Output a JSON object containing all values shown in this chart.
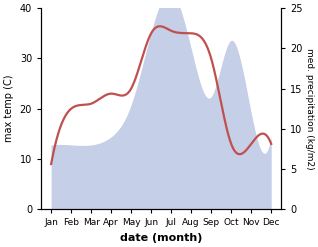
{
  "months": [
    "Jan",
    "Feb",
    "Mar",
    "Apr",
    "May",
    "Jun",
    "Jul",
    "Aug",
    "Sep",
    "Oct",
    "Nov",
    "Dec"
  ],
  "month_positions": [
    0,
    1,
    2,
    3,
    4,
    5,
    6,
    7,
    8,
    9,
    10,
    11
  ],
  "max_temp": [
    9,
    20,
    21,
    23,
    24,
    35,
    35.5,
    35,
    30,
    13,
    13,
    13
  ],
  "precipitation": [
    8,
    8,
    8,
    9,
    13,
    22,
    27,
    20,
    14,
    21,
    12,
    9
  ],
  "temp_color": "#c0504d",
  "precip_fill_color": "#c5cfe8",
  "precip_fill_alpha": 1.0,
  "temp_ylim": [
    0,
    40
  ],
  "precip_ylim": [
    0,
    25
  ],
  "precip_yticks": [
    0,
    5,
    10,
    15,
    20,
    25
  ],
  "temp_yticks": [
    0,
    10,
    20,
    30,
    40
  ],
  "ylabel_left": "max temp (C)",
  "ylabel_right": "med. precipitation (kg/m2)",
  "xlabel": "date (month)",
  "background_color": "#ffffff",
  "linewidth": 1.6
}
